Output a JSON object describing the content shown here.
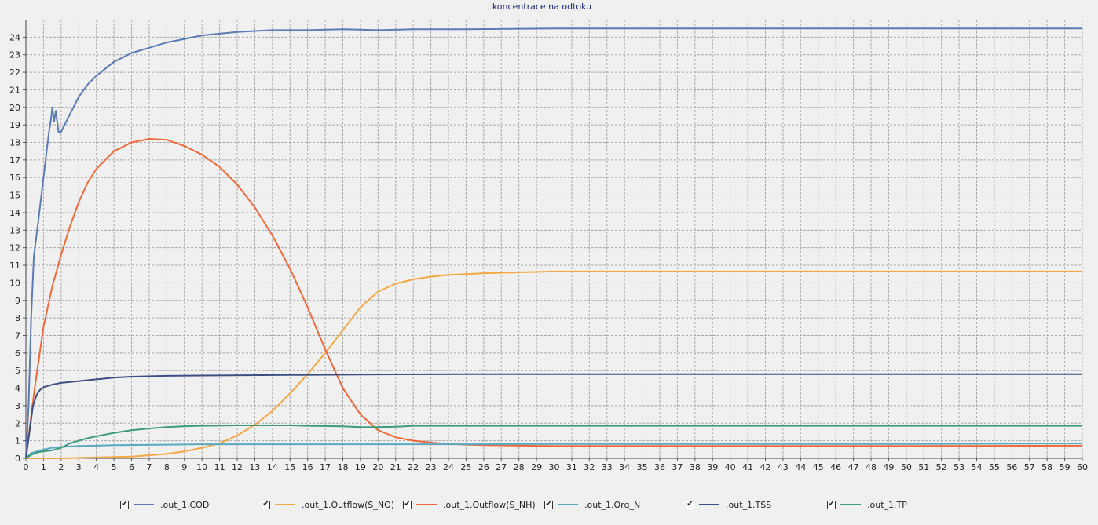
{
  "chart_data": {
    "type": "line",
    "title": "koncentrace na odtoku",
    "xlabel": "",
    "ylabel": "",
    "xlim": [
      0,
      60
    ],
    "ylim": [
      0,
      25
    ],
    "x_ticks": [
      0,
      1,
      2,
      3,
      4,
      5,
      6,
      7,
      8,
      9,
      10,
      11,
      12,
      13,
      14,
      15,
      16,
      17,
      18,
      19,
      20,
      21,
      22,
      23,
      24,
      25,
      26,
      27,
      28,
      29,
      30,
      31,
      32,
      33,
      34,
      35,
      36,
      37,
      38,
      39,
      40,
      41,
      42,
      43,
      44,
      45,
      46,
      47,
      48,
      49,
      50,
      51,
      52,
      53,
      54,
      55,
      56,
      57,
      58,
      59,
      60
    ],
    "y_ticks": [
      0,
      1,
      2,
      3,
      4,
      5,
      6,
      7,
      8,
      9,
      10,
      11,
      12,
      13,
      14,
      15,
      16,
      17,
      18,
      19,
      20,
      21,
      22,
      23,
      24
    ],
    "grid": true,
    "legend_position": "bottom",
    "series": [
      {
        "name": ".out_1.COD",
        "color": "#5b7bb7",
        "checked": true,
        "points": [
          [
            0,
            0
          ],
          [
            0.15,
            3
          ],
          [
            0.3,
            8
          ],
          [
            0.45,
            11.5
          ],
          [
            0.7,
            13.5
          ],
          [
            1,
            16
          ],
          [
            1.3,
            18.5
          ],
          [
            1.45,
            19.5
          ],
          [
            1.5,
            20
          ],
          [
            1.6,
            19.2
          ],
          [
            1.7,
            19.8
          ],
          [
            1.85,
            18.6
          ],
          [
            2,
            18.6
          ],
          [
            2.5,
            19.6
          ],
          [
            3,
            20.6
          ],
          [
            3.5,
            21.3
          ],
          [
            4,
            21.8
          ],
          [
            5,
            22.6
          ],
          [
            6,
            23.1
          ],
          [
            7,
            23.4
          ],
          [
            8,
            23.7
          ],
          [
            9,
            23.9
          ],
          [
            10,
            24.1
          ],
          [
            11,
            24.2
          ],
          [
            12,
            24.3
          ],
          [
            13,
            24.35
          ],
          [
            14,
            24.4
          ],
          [
            16,
            24.4
          ],
          [
            18,
            24.45
          ],
          [
            20,
            24.4
          ],
          [
            22,
            24.45
          ],
          [
            25,
            24.45
          ],
          [
            30,
            24.5
          ],
          [
            40,
            24.5
          ],
          [
            50,
            24.5
          ],
          [
            60,
            24.5
          ]
        ]
      },
      {
        "name": ".out_1.Outflow(S_NO)",
        "color": "#f5a742",
        "checked": true,
        "points": [
          [
            0,
            0
          ],
          [
            2,
            0
          ],
          [
            4,
            0.05
          ],
          [
            6,
            0.1
          ],
          [
            8,
            0.25
          ],
          [
            9,
            0.4
          ],
          [
            10,
            0.6
          ],
          [
            11,
            0.85
          ],
          [
            12,
            1.3
          ],
          [
            13,
            1.9
          ],
          [
            14,
            2.7
          ],
          [
            15,
            3.7
          ],
          [
            16,
            4.8
          ],
          [
            17,
            6.0
          ],
          [
            18,
            7.3
          ],
          [
            19,
            8.6
          ],
          [
            20,
            9.5
          ],
          [
            21,
            9.95
          ],
          [
            22,
            10.2
          ],
          [
            23,
            10.35
          ],
          [
            24,
            10.45
          ],
          [
            25,
            10.5
          ],
          [
            26,
            10.55
          ],
          [
            28,
            10.6
          ],
          [
            30,
            10.65
          ],
          [
            35,
            10.65
          ],
          [
            40,
            10.65
          ],
          [
            50,
            10.65
          ],
          [
            60,
            10.65
          ]
        ]
      },
      {
        "name": ".out_1.Outflow(S_NH)",
        "color": "#f0693b",
        "checked": true,
        "points": [
          [
            0,
            0
          ],
          [
            0.5,
            4
          ],
          [
            1,
            7.5
          ],
          [
            1.5,
            9.8
          ],
          [
            2,
            11.6
          ],
          [
            2.5,
            13.2
          ],
          [
            3,
            14.6
          ],
          [
            3.5,
            15.7
          ],
          [
            4,
            16.5
          ],
          [
            5,
            17.5
          ],
          [
            6,
            18.0
          ],
          [
            7,
            18.2
          ],
          [
            8,
            18.15
          ],
          [
            9,
            17.8
          ],
          [
            10,
            17.3
          ],
          [
            11,
            16.6
          ],
          [
            12,
            15.6
          ],
          [
            13,
            14.3
          ],
          [
            14,
            12.7
          ],
          [
            15,
            10.8
          ],
          [
            16,
            8.6
          ],
          [
            17,
            6.2
          ],
          [
            18,
            4.0
          ],
          [
            19,
            2.5
          ],
          [
            20,
            1.6
          ],
          [
            21,
            1.2
          ],
          [
            22,
            1.0
          ],
          [
            23,
            0.9
          ],
          [
            24,
            0.82
          ],
          [
            25,
            0.78
          ],
          [
            26,
            0.75
          ],
          [
            28,
            0.72
          ],
          [
            30,
            0.7
          ],
          [
            40,
            0.7
          ],
          [
            50,
            0.7
          ],
          [
            60,
            0.72
          ]
        ]
      },
      {
        "name": ".out_1.Org_N",
        "color": "#5aa9c2",
        "checked": true,
        "points": [
          [
            0,
            0
          ],
          [
            0.3,
            0.3
          ],
          [
            1,
            0.5
          ],
          [
            1.5,
            0.6
          ],
          [
            2,
            0.65
          ],
          [
            3,
            0.7
          ],
          [
            4,
            0.72
          ],
          [
            5,
            0.75
          ],
          [
            8,
            0.78
          ],
          [
            10,
            0.8
          ],
          [
            15,
            0.8
          ],
          [
            20,
            0.8
          ],
          [
            25,
            0.8
          ],
          [
            30,
            0.82
          ],
          [
            40,
            0.82
          ],
          [
            50,
            0.82
          ],
          [
            60,
            0.85
          ]
        ]
      },
      {
        "name": ".out_1.TSS",
        "color": "#3c4f84",
        "checked": true,
        "points": [
          [
            0,
            0
          ],
          [
            0.2,
            1.5
          ],
          [
            0.4,
            3.0
          ],
          [
            0.6,
            3.6
          ],
          [
            0.8,
            3.9
          ],
          [
            1,
            4.05
          ],
          [
            1.5,
            4.2
          ],
          [
            2,
            4.3
          ],
          [
            3,
            4.4
          ],
          [
            4,
            4.5
          ],
          [
            5,
            4.6
          ],
          [
            6,
            4.65
          ],
          [
            8,
            4.7
          ],
          [
            10,
            4.72
          ],
          [
            15,
            4.75
          ],
          [
            20,
            4.78
          ],
          [
            25,
            4.8
          ],
          [
            30,
            4.8
          ],
          [
            40,
            4.8
          ],
          [
            50,
            4.8
          ],
          [
            60,
            4.8
          ]
        ]
      },
      {
        "name": ".out_1.TP",
        "color": "#3c9a7d",
        "checked": true,
        "points": [
          [
            0,
            0
          ],
          [
            0.3,
            0.2
          ],
          [
            0.7,
            0.35
          ],
          [
            1,
            0.4
          ],
          [
            1.5,
            0.45
          ],
          [
            2,
            0.6
          ],
          [
            2.5,
            0.85
          ],
          [
            3,
            1.0
          ],
          [
            3.5,
            1.15
          ],
          [
            4,
            1.25
          ],
          [
            5,
            1.45
          ],
          [
            6,
            1.6
          ],
          [
            7,
            1.7
          ],
          [
            8,
            1.78
          ],
          [
            9,
            1.83
          ],
          [
            10,
            1.85
          ],
          [
            12,
            1.88
          ],
          [
            14,
            1.88
          ],
          [
            15,
            1.88
          ],
          [
            16,
            1.85
          ],
          [
            18,
            1.82
          ],
          [
            19,
            1.78
          ],
          [
            20,
            1.78
          ],
          [
            21,
            1.8
          ],
          [
            22,
            1.85
          ],
          [
            25,
            1.85
          ],
          [
            30,
            1.85
          ],
          [
            40,
            1.85
          ],
          [
            50,
            1.85
          ],
          [
            60,
            1.85
          ]
        ]
      }
    ]
  }
}
